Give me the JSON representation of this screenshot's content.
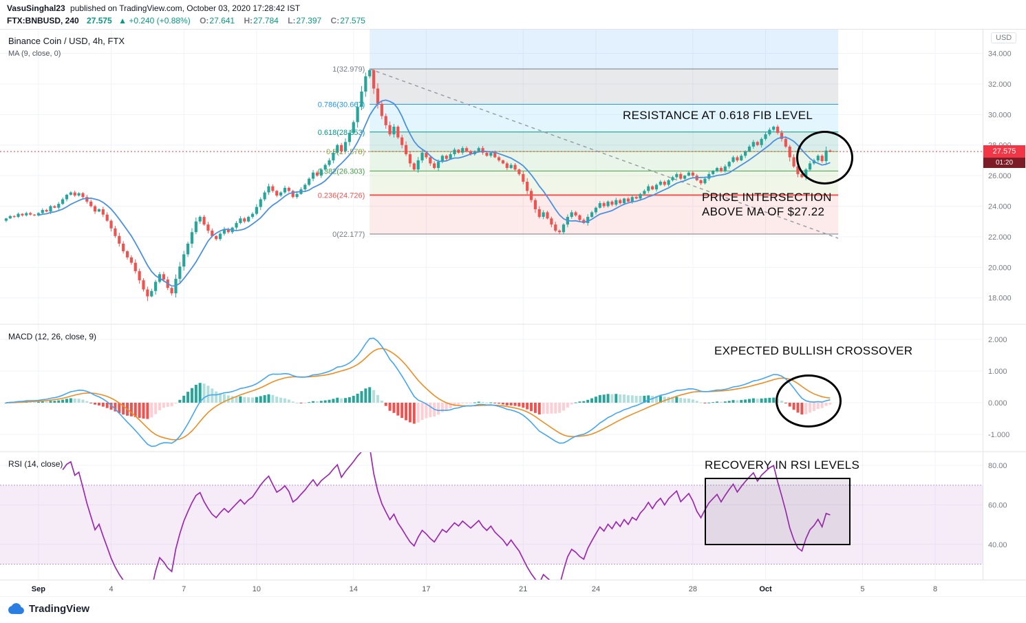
{
  "header": {
    "author": "VasuSinghal23",
    "published": "published on TradingView.com, October 03, 2020 17:28:42 IST",
    "symbol": "FTX:BNBUSD, 240",
    "last_price": "27.575",
    "arrow": "▲",
    "change": "+0.240 (+0.88%)",
    "o_label": "O:",
    "o": "27.641",
    "h_label": "H:",
    "h": "27.784",
    "l_label": "L:",
    "l": "27.397",
    "c_label": "C:",
    "c": "27.575"
  },
  "main_pane": {
    "legend_title": "Binance Coin / USD, 4h, FTX",
    "legend_ma": "MA (9, close, 0)",
    "currency_label": "USD",
    "price_badge": {
      "price": "27.575",
      "countdown": "01:20"
    }
  },
  "macd_pane": {
    "legend": "MACD (12, 26, close, 9)"
  },
  "rsi_pane": {
    "legend": "RSI (14, close)"
  },
  "annotations": {
    "resistance": "RESISTANCE AT 0.618 FIB LEVEL",
    "intersection_line1": "PRICE INTERSECTION",
    "intersection_line2": "ABOVE MA OF  $27.22",
    "macd": "EXPECTED BULLISH CROSSOVER",
    "rsi": "RECOVERY IN RSI LEVELS"
  },
  "footer": {
    "logo_text": "TradingView"
  },
  "chart_data": {
    "type": "candlestick",
    "title": "Binance Coin / USD, 4h, FTX",
    "interval": "4h",
    "exchange": "FTX",
    "current_price": 27.575,
    "min_low": 17.8,
    "ylim_main": [
      16.3,
      35.6
    ],
    "closes": [
      23.2,
      23.35,
      23.3,
      23.5,
      23.4,
      23.55,
      23.45,
      23.4,
      23.55,
      23.75,
      23.65,
      24.0,
      23.9,
      24.15,
      24.45,
      24.75,
      24.9,
      24.7,
      24.85,
      24.6,
      24.3,
      24.0,
      23.65,
      23.8,
      23.45,
      23.05,
      22.55,
      22.05,
      21.55,
      21.05,
      20.65,
      20.3,
      19.75,
      19.15,
      18.55,
      18.1,
      18.45,
      19.05,
      19.55,
      19.2,
      18.65,
      18.3,
      19.25,
      20.05,
      20.85,
      21.55,
      22.3,
      23.0,
      23.3,
      22.8,
      22.4,
      22.05,
      21.85,
      22.2,
      22.5,
      22.3,
      22.6,
      22.9,
      23.2,
      23.0,
      23.3,
      23.5,
      23.95,
      24.45,
      24.9,
      25.3,
      25.0,
      24.7,
      24.9,
      25.2,
      25.0,
      24.6,
      24.8,
      25.1,
      25.4,
      25.8,
      26.2,
      26.0,
      26.4,
      26.7,
      27.0,
      27.5,
      28.0,
      27.6,
      28.2,
      28.8,
      29.5,
      30.5,
      31.5,
      32.5,
      32.9,
      31.7,
      30.7,
      29.9,
      29.3,
      28.7,
      29.2,
      28.5,
      28.0,
      27.4,
      26.8,
      26.4,
      27.0,
      27.5,
      27.2,
      26.8,
      26.5,
      26.9,
      27.3,
      27.1,
      27.4,
      27.7,
      27.5,
      27.8,
      27.6,
      27.4,
      27.6,
      27.8,
      27.5,
      27.3,
      27.5,
      27.2,
      27.0,
      26.8,
      26.5,
      26.7,
      26.4,
      26.1,
      25.6,
      25.0,
      24.4,
      23.8,
      23.3,
      23.6,
      23.2,
      22.8,
      22.4,
      22.3,
      22.8,
      23.3,
      23.6,
      23.4,
      23.1,
      22.9,
      23.3,
      23.6,
      23.9,
      24.2,
      24.0,
      24.3,
      24.1,
      24.4,
      24.2,
      24.5,
      24.3,
      24.6,
      24.5,
      24.8,
      25.0,
      25.3,
      25.1,
      25.4,
      25.6,
      25.4,
      25.7,
      25.9,
      26.1,
      25.8,
      26.0,
      26.2,
      26.0,
      25.7,
      25.5,
      25.8,
      26.1,
      26.3,
      26.5,
      26.3,
      26.6,
      26.9,
      27.2,
      27.0,
      27.3,
      27.6,
      27.9,
      28.2,
      28.0,
      28.4,
      28.7,
      29.0,
      29.2,
      28.8,
      28.4,
      27.9,
      27.2,
      26.6,
      26.1,
      25.9,
      26.4,
      26.8,
      27.0,
      27.3,
      26.95,
      27.64,
      27.575
    ],
    "indicators": {
      "ma": {
        "period": 9
      },
      "macd": {
        "fast": 12,
        "slow": 26,
        "signal_period": 9
      },
      "rsi": {
        "period": 14,
        "band": [
          30,
          70
        ]
      }
    },
    "fib": {
      "x_start_index": 90,
      "x_end_index": 206,
      "high": 32.979,
      "low": 22.177,
      "band_colors": [
        "rgba(33,150,243,0.13)",
        "rgba(120,123,134,0.17)",
        "rgba(41,182,246,0.13)",
        "rgba(0,137,123,0.15)",
        "rgba(76,175,80,0.13)",
        "rgba(139,195,74,0.13)",
        "rgba(239,83,80,0.12)"
      ],
      "levels": [
        {
          "ratio": 1,
          "price": 32.979,
          "label": "1(32.979)",
          "color": "#787b86"
        },
        {
          "ratio": 0.786,
          "price": 30.667,
          "label": "0.786(30.667)",
          "color": "#2196f3"
        },
        {
          "ratio": 0.618,
          "price": 28.853,
          "label": "0.618(28.853)",
          "color": "#009688"
        },
        {
          "ratio": 0.5,
          "price": 27.578,
          "label": "0.5(27.578)",
          "color": "#7cb342"
        },
        {
          "ratio": 0.382,
          "price": 26.303,
          "label": "0.382(26.303)",
          "color": "#43a047"
        },
        {
          "ratio": 0.236,
          "price": 24.726,
          "label": "0.236(24.726)",
          "color": "#ef5350",
          "line_width": 2
        },
        {
          "ratio": 0,
          "price": 22.177,
          "label": "0(22.177)",
          "color": "#787b86"
        }
      ]
    },
    "trendline": {
      "from_index": 90,
      "from_price": 32.979,
      "to_index": 206,
      "to_price": 21.9
    },
    "price_axis": {
      "ticks": [
        {
          "v": 34,
          "label": "34.000"
        },
        {
          "v": 32,
          "label": "32.000"
        },
        {
          "v": 30,
          "label": "30.000"
        },
        {
          "v": 28,
          "label": "28.000"
        },
        {
          "v": 26,
          "label": "26.000"
        },
        {
          "v": 24,
          "label": "24.000"
        },
        {
          "v": 22,
          "label": "22.000"
        },
        {
          "v": 20,
          "label": "20.000"
        },
        {
          "v": 18,
          "label": "18.000"
        }
      ]
    },
    "macd_axis": {
      "ticks": [
        {
          "v": 2,
          "label": "2.000"
        },
        {
          "v": 1,
          "label": "1.000"
        },
        {
          "v": 0,
          "label": "0.000"
        },
        {
          "v": -1,
          "label": "-1.000"
        }
      ]
    },
    "rsi_axis": {
      "ticks": [
        {
          "v": 80,
          "label": "80.00"
        },
        {
          "v": 60,
          "label": "60.00"
        },
        {
          "v": 40,
          "label": "40.00"
        }
      ]
    },
    "time_axis": {
      "ticks": [
        {
          "label": "Sep",
          "index": 8,
          "major": true
        },
        {
          "label": "4",
          "index": 26
        },
        {
          "label": "7",
          "index": 44
        },
        {
          "label": "10",
          "index": 62
        },
        {
          "label": "14",
          "index": 86
        },
        {
          "label": "17",
          "index": 104
        },
        {
          "label": "21",
          "index": 128
        },
        {
          "label": "24",
          "index": 146
        },
        {
          "label": "28",
          "index": 170
        },
        {
          "label": "Oct",
          "index": 188,
          "major": true
        },
        {
          "label": "5",
          "index": 212
        },
        {
          "label": "8",
          "index": 230
        }
      ]
    },
    "colors": {
      "up": "#26a69a",
      "down": "#ef5350",
      "ma": "#4a90e2",
      "macd_line": "#42a5f5",
      "macd_signal": "#f08c1f",
      "hist": [
        "#26a69a",
        "#b2dfdb",
        "#ffcdd2",
        "#ef5350"
      ],
      "rsi": "#9c27b0",
      "rsi_band": "rgba(171,71,188,0.10)",
      "rsi_band_border": "#ad9ccd",
      "price_line": "#f23645",
      "accent_teal": "#089981"
    }
  }
}
